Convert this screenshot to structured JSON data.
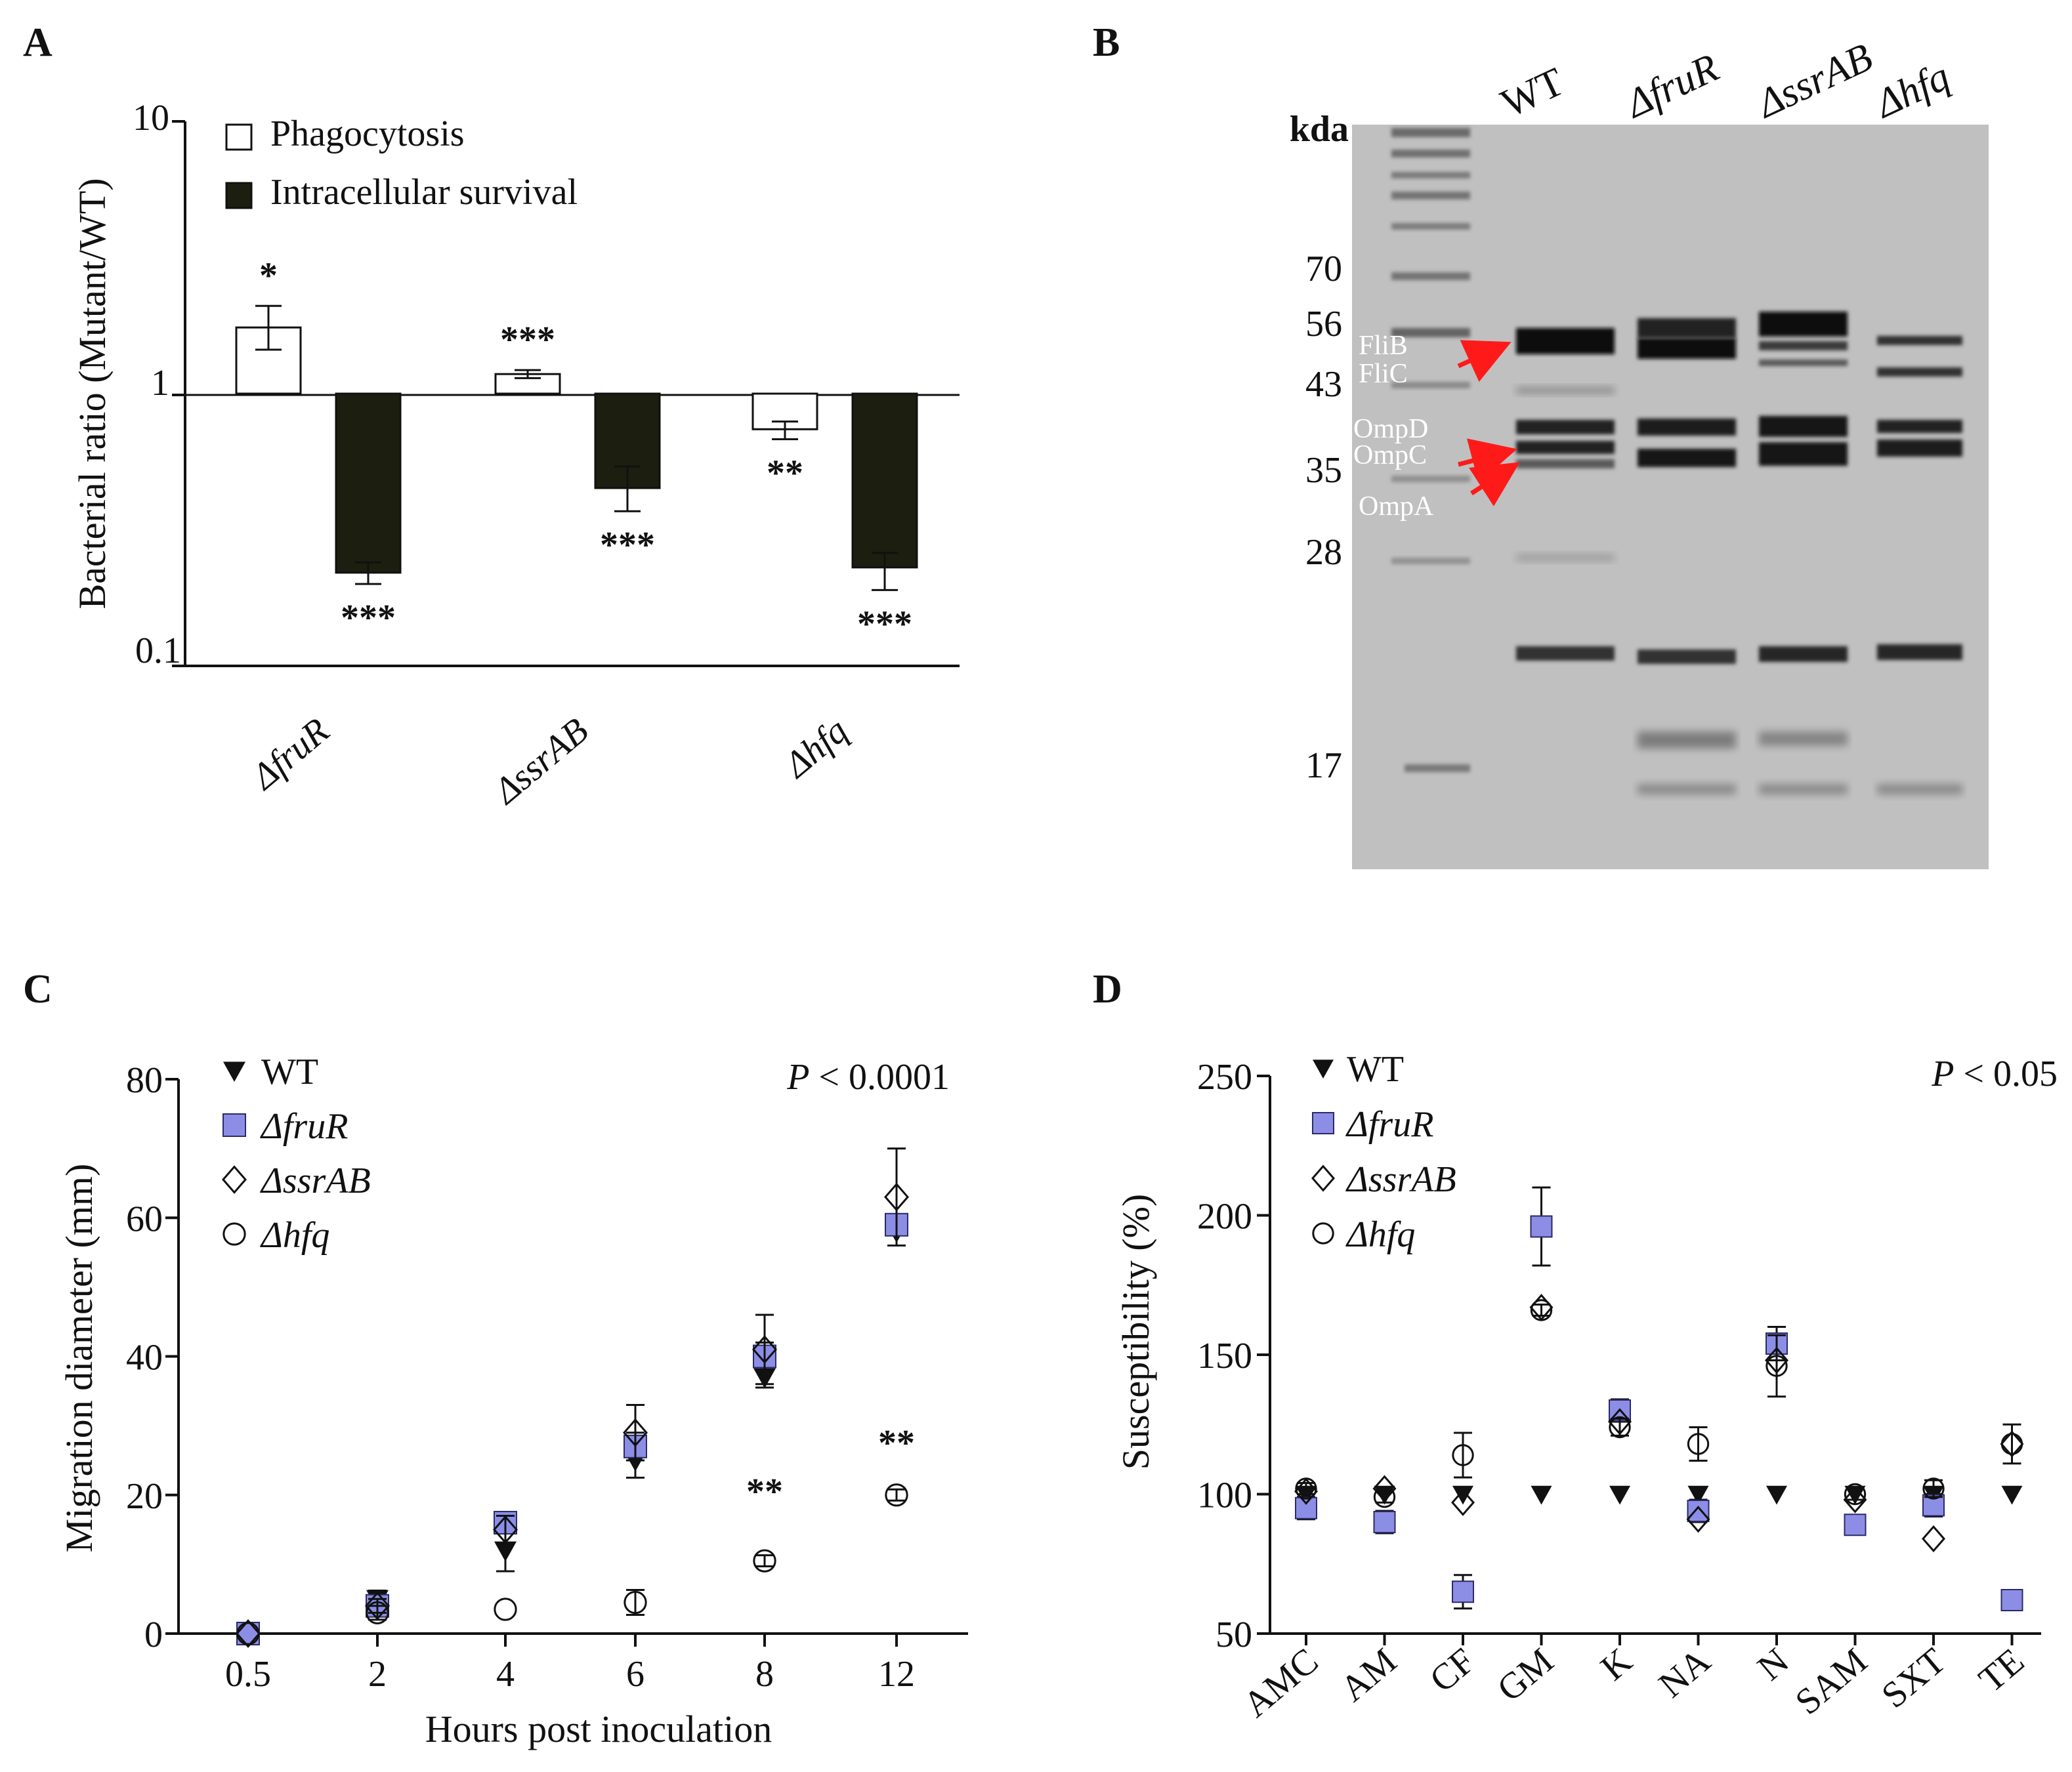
{
  "panels": {
    "a": {
      "letter": "A"
    },
    "b": {
      "letter": "B"
    },
    "c": {
      "letter": "C"
    },
    "d": {
      "letter": "D"
    }
  },
  "chart_data": [
    {
      "panel": "A",
      "type": "bar",
      "yscale": "log",
      "ylim": [
        0.1,
        10
      ],
      "baseline": 1,
      "ylabel": "Bacterial ratio (Mutant/WT)",
      "ytick_labels": [
        "10",
        "1",
        "0.1"
      ],
      "ytick_values": [
        10,
        1,
        0.1
      ],
      "categories": [
        "ΔfruR",
        "ΔssrAB",
        "Δhfq"
      ],
      "series": [
        {
          "name": "Phagocytosis",
          "color": "#ffffff",
          "values": [
            1.75,
            1.18,
            0.74
          ],
          "err_low": [
            1.45,
            1.14,
            0.68
          ],
          "err_high": [
            2.1,
            1.22,
            0.79
          ],
          "stars": [
            "*",
            "***",
            "**"
          ]
        },
        {
          "name": "Intracellular survival",
          "color": "#1c1f0f",
          "values": [
            0.22,
            0.45,
            0.23
          ],
          "err_low": [
            0.2,
            0.37,
            0.19
          ],
          "err_high": [
            0.24,
            0.54,
            0.26
          ],
          "stars": [
            "***",
            "***",
            "***"
          ]
        }
      ]
    },
    {
      "panel": "B",
      "type": "gel",
      "unit_label": "kda",
      "lanes": [
        "WT",
        "ΔfruR",
        "ΔssrAB",
        "Δhfq"
      ],
      "marker_labels": [
        "70",
        "56",
        "43",
        "35",
        "28",
        "17"
      ],
      "band_labels": [
        "FliB",
        "FliC",
        "OmpD",
        "OmpC",
        "OmpA"
      ]
    },
    {
      "panel": "C",
      "type": "scatter",
      "xlabel": "Hours post inoculation",
      "ylabel": "Migration diameter (mm)",
      "categories": [
        "0.5",
        "2",
        "4",
        "6",
        "8",
        "12"
      ],
      "ylim": [
        0,
        80
      ],
      "yticks": [
        "0",
        "20",
        "40",
        "60",
        "80"
      ],
      "p_prefix": "P",
      "p_suffix": " < 0.0001",
      "series": [
        {
          "name": "WT",
          "marker": "triangle-down",
          "values": [
            0,
            5,
            12,
            25,
            37,
            58
          ],
          "err": [
            0.5,
            1.2,
            3,
            2.5,
            1.5,
            2
          ]
        },
        {
          "name": "ΔfruR",
          "marker": "square",
          "values": [
            0,
            4,
            16,
            27,
            40,
            59
          ],
          "err": [
            0.5,
            1,
            1.5,
            2,
            2,
            1.5
          ]
        },
        {
          "name": "ΔssrAB",
          "marker": "diamond",
          "values": [
            0,
            4,
            15,
            29,
            41,
            63
          ],
          "err": [
            0.5,
            1,
            2,
            4,
            5,
            7
          ]
        },
        {
          "name": "Δhfq",
          "marker": "circle",
          "values": [
            0,
            3,
            3.5,
            4.5,
            10.5,
            20
          ],
          "err": [
            0.5,
            1,
            0.5,
            1.8,
            0.8,
            0.8
          ]
        }
      ],
      "annotations": [
        {
          "x": "8",
          "y": 20,
          "text": "**"
        },
        {
          "x": "12",
          "y": 27,
          "text": "**"
        }
      ]
    },
    {
      "panel": "D",
      "type": "scatter",
      "ylabel": "Susceptibility (%)",
      "categories": [
        "AMC",
        "AM",
        "CF",
        "GM",
        "K",
        "NA",
        "N",
        "SAM",
        "SXT",
        "TE"
      ],
      "ylim": [
        50,
        250
      ],
      "yticks": [
        "50",
        "100",
        "150",
        "200",
        "250"
      ],
      "p_prefix": "P",
      "p_suffix": " < 0.05",
      "series": [
        {
          "name": "WT",
          "marker": "triangle-down",
          "values": [
            100,
            100,
            100,
            100,
            100,
            100,
            100,
            100,
            100,
            100
          ],
          "err": [
            0,
            0,
            0,
            0,
            0,
            0,
            0,
            0,
            0,
            0
          ]
        },
        {
          "name": "ΔfruR",
          "marker": "square",
          "values": [
            95,
            90,
            65,
            196,
            130,
            94,
            154,
            89,
            96,
            62
          ],
          "err": [
            4,
            4,
            6,
            14,
            4,
            4,
            6,
            3,
            4,
            3
          ]
        },
        {
          "name": "ΔssrAB",
          "marker": "diamond",
          "values": [
            101,
            102,
            97,
            167,
            126,
            91,
            148,
            98,
            84,
            118
          ],
          "err": [
            0,
            0,
            0,
            0,
            0,
            0,
            0,
            0,
            0,
            0
          ]
        },
        {
          "name": "Δhfq",
          "marker": "circle",
          "values": [
            102,
            99,
            114,
            166,
            124,
            118,
            146,
            100,
            102,
            118
          ],
          "err": [
            2,
            2,
            8,
            2,
            3,
            6,
            11,
            2,
            3,
            7
          ]
        }
      ]
    }
  ]
}
